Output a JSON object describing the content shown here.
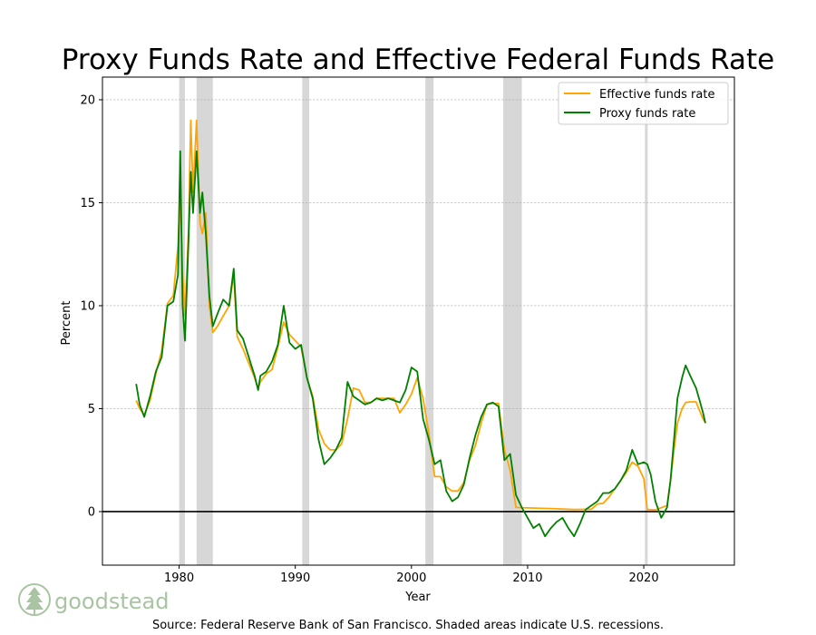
{
  "chart_data": {
    "type": "line",
    "title": "Proxy Funds Rate and Effective Federal Funds Rate",
    "xlabel": "Year",
    "ylabel": "Percent",
    "xlim": [
      1973.4,
      2027.8
    ],
    "ylim": [
      -2.6,
      21.1
    ],
    "xticks": [
      1980,
      1990,
      2000,
      2010,
      2020
    ],
    "yticks": [
      0,
      5,
      10,
      15,
      20
    ],
    "grid": "horizontal dashed",
    "legend_position": "top-right",
    "zero_line": true,
    "recessions": [
      [
        1980.0,
        1980.5
      ],
      [
        1981.5,
        1982.9
      ],
      [
        1990.6,
        1991.2
      ],
      [
        2001.2,
        2001.9
      ],
      [
        2007.9,
        2009.5
      ],
      [
        2020.1,
        2020.3
      ]
    ],
    "series": [
      {
        "name": "Effective funds rate",
        "color": "#ffa500",
        "x": [
          1976.3,
          1976.6,
          1977.0,
          1977.5,
          1978.0,
          1978.5,
          1979.0,
          1979.5,
          1979.9,
          1980.1,
          1980.3,
          1980.5,
          1980.8,
          1981.0,
          1981.2,
          1981.5,
          1981.8,
          1982.0,
          1982.3,
          1982.6,
          1982.9,
          1983.3,
          1983.8,
          1984.3,
          1984.7,
          1985.0,
          1985.5,
          1986.0,
          1986.5,
          1986.8,
          1987.0,
          1987.5,
          1988.0,
          1988.5,
          1989.0,
          1989.5,
          1990.0,
          1990.5,
          1991.0,
          1991.5,
          1992.0,
          1992.5,
          1993.0,
          1993.5,
          1994.0,
          1994.5,
          1995.0,
          1995.5,
          1996.0,
          1996.5,
          1997.0,
          1997.5,
          1998.0,
          1998.5,
          1999.0,
          1999.5,
          2000.0,
          2000.5,
          2001.0,
          2001.5,
          2002.0,
          2002.5,
          2003.0,
          2003.5,
          2004.0,
          2004.5,
          2005.0,
          2005.5,
          2006.0,
          2006.5,
          2007.0,
          2007.5,
          2008.0,
          2008.5,
          2009.0,
          2010.0,
          2012.0,
          2014.0,
          2015.5,
          2016.0,
          2016.5,
          2017.0,
          2017.5,
          2018.0,
          2018.5,
          2019.0,
          2019.5,
          2020.0,
          2020.3,
          2021.0,
          2022.0,
          2022.3,
          2022.6,
          2022.9,
          2023.3,
          2023.6,
          2024.0,
          2024.5,
          2024.8,
          2025.1,
          2025.3
        ],
        "values": [
          5.4,
          5.0,
          4.7,
          5.4,
          6.7,
          7.8,
          10.1,
          10.5,
          12.9,
          15.5,
          11.5,
          9.5,
          13.5,
          19.0,
          15.5,
          19.0,
          14.0,
          13.5,
          14.5,
          10.0,
          8.7,
          9.0,
          9.5,
          10.0,
          11.5,
          8.5,
          7.9,
          7.2,
          6.5,
          6.0,
          6.3,
          6.7,
          6.9,
          8.0,
          9.2,
          8.6,
          8.3,
          8.0,
          6.5,
          5.6,
          4.0,
          3.3,
          3.0,
          3.0,
          3.3,
          4.5,
          6.0,
          5.9,
          5.3,
          5.3,
          5.5,
          5.5,
          5.5,
          5.5,
          4.8,
          5.2,
          5.7,
          6.5,
          5.5,
          3.8,
          1.7,
          1.7,
          1.2,
          1.0,
          1.0,
          1.4,
          2.5,
          3.2,
          4.3,
          5.2,
          5.25,
          5.25,
          3.0,
          2.0,
          0.2,
          0.18,
          0.15,
          0.1,
          0.12,
          0.37,
          0.4,
          0.7,
          1.1,
          1.5,
          1.9,
          2.4,
          2.2,
          1.6,
          0.1,
          0.08,
          0.3,
          1.5,
          3.0,
          4.3,
          5.0,
          5.3,
          5.33,
          5.33,
          4.9,
          4.5,
          4.33
        ]
      },
      {
        "name": "Proxy funds rate",
        "color": "#008000",
        "x": [
          1976.3,
          1976.6,
          1977.0,
          1977.5,
          1978.0,
          1978.5,
          1979.0,
          1979.5,
          1979.9,
          1980.1,
          1980.3,
          1980.5,
          1980.8,
          1981.0,
          1981.2,
          1981.5,
          1981.8,
          1982.0,
          1982.3,
          1982.6,
          1982.9,
          1983.3,
          1983.8,
          1984.3,
          1984.7,
          1985.0,
          1985.5,
          1986.0,
          1986.5,
          1986.8,
          1987.0,
          1987.5,
          1988.0,
          1988.5,
          1989.0,
          1989.5,
          1990.0,
          1990.5,
          1991.0,
          1991.5,
          1992.0,
          1992.5,
          1993.0,
          1993.5,
          1994.0,
          1994.5,
          1995.0,
          1995.5,
          1996.0,
          1996.5,
          1997.0,
          1997.5,
          1998.0,
          1998.5,
          1999.0,
          1999.5,
          2000.0,
          2000.5,
          2001.0,
          2001.5,
          2002.0,
          2002.5,
          2003.0,
          2003.5,
          2004.0,
          2004.5,
          2005.0,
          2005.5,
          2006.0,
          2006.5,
          2007.0,
          2007.5,
          2008.0,
          2008.5,
          2009.0,
          2009.5,
          2010.0,
          2010.5,
          2011.0,
          2011.5,
          2012.0,
          2012.5,
          2013.0,
          2013.5,
          2014.0,
          2014.5,
          2015.0,
          2015.5,
          2016.0,
          2016.5,
          2017.0,
          2017.5,
          2018.0,
          2018.5,
          2019.0,
          2019.5,
          2020.0,
          2020.3,
          2020.6,
          2021.0,
          2021.5,
          2022.0,
          2022.3,
          2022.6,
          2022.9,
          2023.3,
          2023.6,
          2024.0,
          2024.5,
          2024.8,
          2025.1,
          2025.3
        ],
        "values": [
          6.2,
          5.2,
          4.6,
          5.6,
          6.8,
          7.5,
          10.0,
          10.2,
          11.5,
          17.5,
          10.0,
          8.3,
          13.0,
          16.5,
          14.5,
          17.5,
          14.5,
          15.5,
          13.5,
          10.5,
          9.0,
          9.6,
          10.3,
          10.0,
          11.8,
          8.8,
          8.4,
          7.5,
          6.6,
          5.9,
          6.6,
          6.8,
          7.3,
          8.1,
          10.0,
          8.2,
          7.9,
          8.1,
          6.5,
          5.5,
          3.5,
          2.3,
          2.6,
          3.0,
          3.6,
          6.3,
          5.6,
          5.4,
          5.2,
          5.3,
          5.5,
          5.4,
          5.5,
          5.4,
          5.3,
          5.9,
          7.0,
          6.8,
          4.5,
          3.5,
          2.3,
          2.5,
          1.0,
          0.5,
          0.7,
          1.3,
          2.6,
          3.7,
          4.6,
          5.2,
          5.3,
          5.1,
          2.5,
          2.8,
          0.8,
          0.2,
          -0.3,
          -0.8,
          -0.6,
          -1.2,
          -0.8,
          -0.5,
          -0.3,
          -0.8,
          -1.2,
          -0.6,
          0.1,
          0.3,
          0.5,
          0.9,
          0.9,
          1.1,
          1.5,
          2.0,
          3.0,
          2.3,
          2.4,
          2.3,
          1.8,
          0.5,
          -0.3,
          0.2,
          1.5,
          3.5,
          5.5,
          6.5,
          7.1,
          6.6,
          6.0,
          5.4,
          4.8,
          4.3
        ]
      }
    ]
  },
  "footer": {
    "source": "Source: Federal Reserve Bank of San Francisco. Shaded areas indicate U.S. recessions.",
    "logo_text": "goodstead"
  }
}
